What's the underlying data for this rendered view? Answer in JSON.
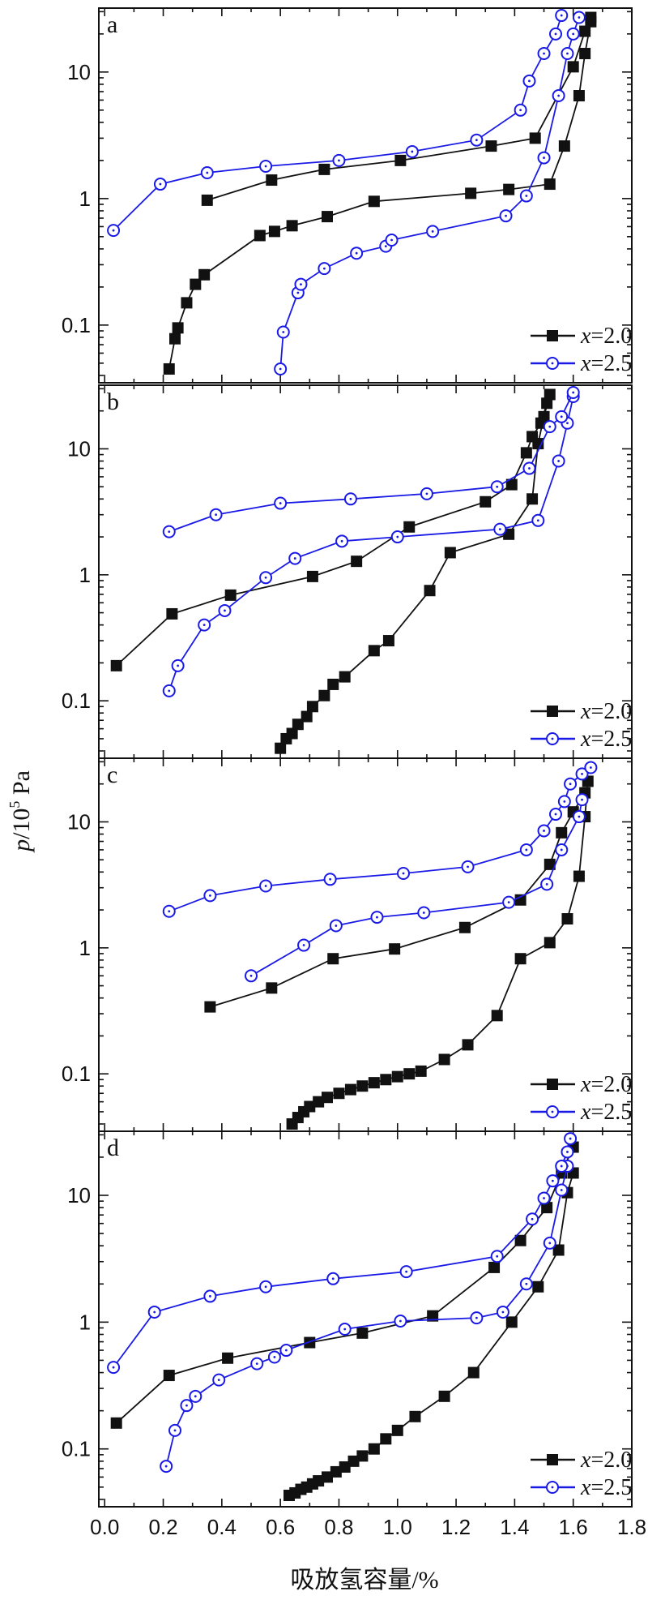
{
  "figure": {
    "ylabel_italic": "p",
    "ylabel_rest": "/10",
    "ylabel_sup": "5",
    "ylabel_unit": " Pa",
    "xlabel": "吸放氢容量/%",
    "colors": {
      "x20": "#111111",
      "x25": "#1a1ae6"
    }
  },
  "legend": {
    "x20_var": "x",
    "x20_val": "=2.0",
    "x25_var": "x",
    "x25_val": "=2.5"
  },
  "chart_data": [
    {
      "type": "scatter",
      "panel": "a",
      "xlim": [
        -0.02,
        1.8
      ],
      "ylim": [
        0.035,
        32
      ],
      "yscale": "log",
      "yticks": [
        0.1,
        1,
        10
      ],
      "series": [
        {
          "name": "x=2.0",
          "branch": "absorption",
          "marker": "square",
          "x": [
            0.22,
            0.24,
            0.25,
            0.28,
            0.31,
            0.34,
            0.53,
            0.58,
            0.64,
            0.76,
            0.92,
            1.25,
            1.38,
            1.52,
            1.57,
            1.62,
            1.64,
            1.66
          ],
          "y": [
            0.045,
            0.078,
            0.095,
            0.15,
            0.21,
            0.25,
            0.51,
            0.55,
            0.61,
            0.72,
            0.95,
            1.1,
            1.18,
            1.3,
            2.6,
            6.5,
            14,
            25
          ]
        },
        {
          "name": "x=2.0",
          "branch": "desorption",
          "marker": "square",
          "x": [
            0.35,
            0.57,
            0.75,
            1.01,
            1.32,
            1.47,
            1.6,
            1.64,
            1.66
          ],
          "y": [
            0.97,
            1.4,
            1.7,
            2.0,
            2.6,
            3.0,
            11,
            21,
            27
          ]
        },
        {
          "name": "x=2.5",
          "branch": "absorption",
          "marker": "circle",
          "x": [
            0.6,
            0.61,
            0.66,
            0.67,
            0.75,
            0.86,
            0.96,
            0.98,
            1.12,
            1.37,
            1.44,
            1.5,
            1.55,
            1.58,
            1.6,
            1.62
          ],
          "y": [
            0.045,
            0.088,
            0.18,
            0.21,
            0.28,
            0.37,
            0.42,
            0.47,
            0.55,
            0.73,
            1.05,
            2.1,
            6.5,
            14,
            20,
            27
          ]
        },
        {
          "name": "x=2.5",
          "branch": "desorption",
          "marker": "circle",
          "x": [
            0.03,
            0.19,
            0.35,
            0.55,
            0.8,
            1.05,
            1.27,
            1.42,
            1.45,
            1.5,
            1.54,
            1.56
          ],
          "y": [
            0.56,
            1.3,
            1.6,
            1.8,
            2.0,
            2.35,
            2.9,
            5.0,
            8.5,
            14,
            20,
            28
          ]
        }
      ]
    },
    {
      "type": "scatter",
      "panel": "b",
      "xlim": [
        -0.02,
        1.8
      ],
      "ylim": [
        0.035,
        32
      ],
      "yscale": "log",
      "yticks": [
        0.1,
        1,
        10
      ],
      "series": [
        {
          "name": "x=2.0",
          "branch": "absorption",
          "marker": "square",
          "x": [
            0.6,
            0.62,
            0.64,
            0.66,
            0.69,
            0.71,
            0.75,
            0.78,
            0.82,
            0.92,
            0.97,
            1.11,
            1.18,
            1.38,
            1.46,
            1.48,
            1.5,
            1.52
          ],
          "y": [
            0.042,
            0.05,
            0.055,
            0.065,
            0.075,
            0.09,
            0.11,
            0.135,
            0.155,
            0.25,
            0.3,
            0.75,
            1.5,
            2.1,
            4,
            11,
            18,
            27
          ]
        },
        {
          "name": "x=2.0",
          "branch": "desorption",
          "marker": "square",
          "x": [
            0.04,
            0.23,
            0.43,
            0.71,
            0.86,
            1.04,
            1.3,
            1.39,
            1.44,
            1.46,
            1.49,
            1.51
          ],
          "y": [
            0.19,
            0.49,
            0.69,
            0.97,
            1.28,
            2.4,
            3.8,
            5.2,
            9.3,
            12.5,
            16,
            23
          ]
        },
        {
          "name": "x=2.5",
          "branch": "absorption",
          "marker": "circle",
          "x": [
            0.22,
            0.25,
            0.34,
            0.41,
            0.55,
            0.65,
            0.81,
            1.0,
            1.35,
            1.48,
            1.55,
            1.58,
            1.6
          ],
          "y": [
            0.12,
            0.19,
            0.4,
            0.52,
            0.95,
            1.35,
            1.85,
            2.0,
            2.3,
            2.7,
            8,
            16,
            26
          ]
        },
        {
          "name": "x=2.5",
          "branch": "desorption",
          "marker": "circle",
          "x": [
            0.22,
            0.38,
            0.6,
            0.84,
            1.1,
            1.34,
            1.45,
            1.52,
            1.56,
            1.6
          ],
          "y": [
            2.2,
            3.0,
            3.7,
            4.0,
            4.4,
            5.0,
            7.0,
            15,
            18,
            28
          ]
        }
      ]
    },
    {
      "type": "scatter",
      "panel": "c",
      "xlim": [
        -0.02,
        1.8
      ],
      "ylim": [
        0.035,
        32
      ],
      "yscale": "log",
      "yticks": [
        0.1,
        1,
        10
      ],
      "series": [
        {
          "name": "x=2.0",
          "branch": "absorption",
          "marker": "square",
          "x": [
            0.64,
            0.66,
            0.68,
            0.7,
            0.73,
            0.76,
            0.8,
            0.84,
            0.88,
            0.92,
            0.96,
            1.0,
            1.04,
            1.08,
            1.16,
            1.24,
            1.34,
            1.42,
            1.52,
            1.58,
            1.62,
            1.64,
            1.65
          ],
          "y": [
            0.04,
            0.045,
            0.05,
            0.055,
            0.06,
            0.065,
            0.07,
            0.075,
            0.08,
            0.085,
            0.09,
            0.095,
            0.1,
            0.105,
            0.13,
            0.17,
            0.29,
            0.82,
            1.1,
            1.7,
            3.7,
            11,
            21
          ]
        },
        {
          "name": "x=2.0",
          "branch": "desorption",
          "marker": "square",
          "x": [
            0.36,
            0.57,
            0.78,
            0.99,
            1.23,
            1.42,
            1.52,
            1.56,
            1.6,
            1.64
          ],
          "y": [
            0.34,
            0.48,
            0.82,
            0.98,
            1.45,
            2.4,
            4.6,
            8.2,
            12,
            17
          ]
        },
        {
          "name": "x=2.5",
          "branch": "absorption",
          "marker": "circle",
          "x": [
            0.5,
            0.68,
            0.79,
            0.93,
            1.09,
            1.38,
            1.51,
            1.56,
            1.62,
            1.63
          ],
          "y": [
            0.6,
            1.05,
            1.5,
            1.75,
            1.9,
            2.3,
            3.2,
            6,
            11,
            15
          ]
        },
        {
          "name": "x=2.5",
          "branch": "desorption",
          "marker": "circle",
          "x": [
            0.22,
            0.36,
            0.55,
            0.77,
            1.02,
            1.24,
            1.44,
            1.5,
            1.54,
            1.57,
            1.59,
            1.63,
            1.66
          ],
          "y": [
            1.95,
            2.6,
            3.1,
            3.5,
            3.9,
            4.4,
            6,
            8.5,
            11.5,
            14.5,
            20,
            24,
            27
          ]
        }
      ]
    },
    {
      "type": "scatter",
      "panel": "d",
      "xlim": [
        -0.02,
        1.8
      ],
      "ylim": [
        0.035,
        32
      ],
      "yscale": "log",
      "yticks": [
        0.1,
        1,
        10
      ],
      "series": [
        {
          "name": "x=2.0",
          "branch": "absorption",
          "marker": "square",
          "x": [
            0.63,
            0.65,
            0.67,
            0.69,
            0.71,
            0.73,
            0.76,
            0.79,
            0.82,
            0.85,
            0.88,
            0.92,
            0.96,
            1.0,
            1.06,
            1.16,
            1.26,
            1.39,
            1.48,
            1.55,
            1.58,
            1.6
          ],
          "y": [
            0.043,
            0.045,
            0.048,
            0.05,
            0.053,
            0.056,
            0.06,
            0.066,
            0.072,
            0.08,
            0.088,
            0.1,
            0.12,
            0.14,
            0.18,
            0.26,
            0.4,
            1.0,
            1.9,
            3.7,
            10.5,
            15
          ]
        },
        {
          "name": "x=2.0",
          "branch": "desorption",
          "marker": "square",
          "x": [
            0.04,
            0.22,
            0.42,
            0.7,
            0.88,
            1.12,
            1.33,
            1.42,
            1.51,
            1.56,
            1.6
          ],
          "y": [
            0.16,
            0.38,
            0.52,
            0.69,
            0.82,
            1.12,
            2.7,
            4.4,
            8,
            15,
            24
          ]
        },
        {
          "name": "x=2.5",
          "branch": "absorption",
          "marker": "circle",
          "x": [
            0.21,
            0.24,
            0.28,
            0.31,
            0.39,
            0.52,
            0.58,
            0.62,
            0.82,
            1.01,
            1.27,
            1.36,
            1.44,
            1.52,
            1.56,
            1.58
          ],
          "y": [
            0.073,
            0.14,
            0.22,
            0.26,
            0.35,
            0.47,
            0.53,
            0.6,
            0.88,
            1.02,
            1.08,
            1.2,
            2.0,
            4.2,
            11,
            17
          ]
        },
        {
          "name": "x=2.5",
          "branch": "desorption",
          "marker": "circle",
          "x": [
            0.03,
            0.17,
            0.36,
            0.55,
            0.78,
            1.03,
            1.34,
            1.46,
            1.5,
            1.53,
            1.56,
            1.58,
            1.59
          ],
          "y": [
            0.44,
            1.2,
            1.6,
            1.9,
            2.2,
            2.5,
            3.3,
            6.5,
            9.5,
            13,
            17,
            22,
            28
          ]
        }
      ]
    }
  ],
  "x_ticks": [
    "0.0",
    "0.2",
    "0.4",
    "0.6",
    "0.8",
    "1.0",
    "1.2",
    "1.4",
    "1.6",
    "1.8"
  ]
}
